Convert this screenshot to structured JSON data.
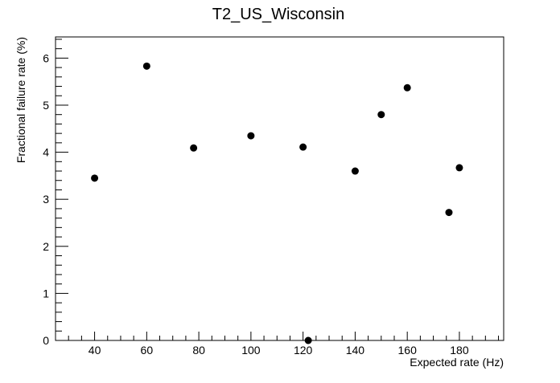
{
  "chart_data": {
    "type": "scatter",
    "title": "T2_US_Wisconsin",
    "xlabel": "Expected rate (Hz)",
    "ylabel": "Fractional failure rate (%)",
    "xlim": [
      25,
      197
    ],
    "ylim": [
      0,
      6.45
    ],
    "x_ticks": [
      40,
      60,
      80,
      100,
      120,
      140,
      160,
      180
    ],
    "y_ticks": [
      0,
      1,
      2,
      3,
      4,
      5,
      6
    ],
    "grid": false,
    "legend": "none",
    "marker_color": "#000000",
    "points": [
      {
        "x": 40,
        "y": 3.45
      },
      {
        "x": 60,
        "y": 5.83
      },
      {
        "x": 78,
        "y": 4.09
      },
      {
        "x": 100,
        "y": 4.35
      },
      {
        "x": 120,
        "y": 4.11
      },
      {
        "x": 122,
        "y": 0.0
      },
      {
        "x": 140,
        "y": 3.6
      },
      {
        "x": 150,
        "y": 4.8
      },
      {
        "x": 160,
        "y": 5.37
      },
      {
        "x": 176,
        "y": 2.72
      },
      {
        "x": 180,
        "y": 3.67
      }
    ]
  }
}
